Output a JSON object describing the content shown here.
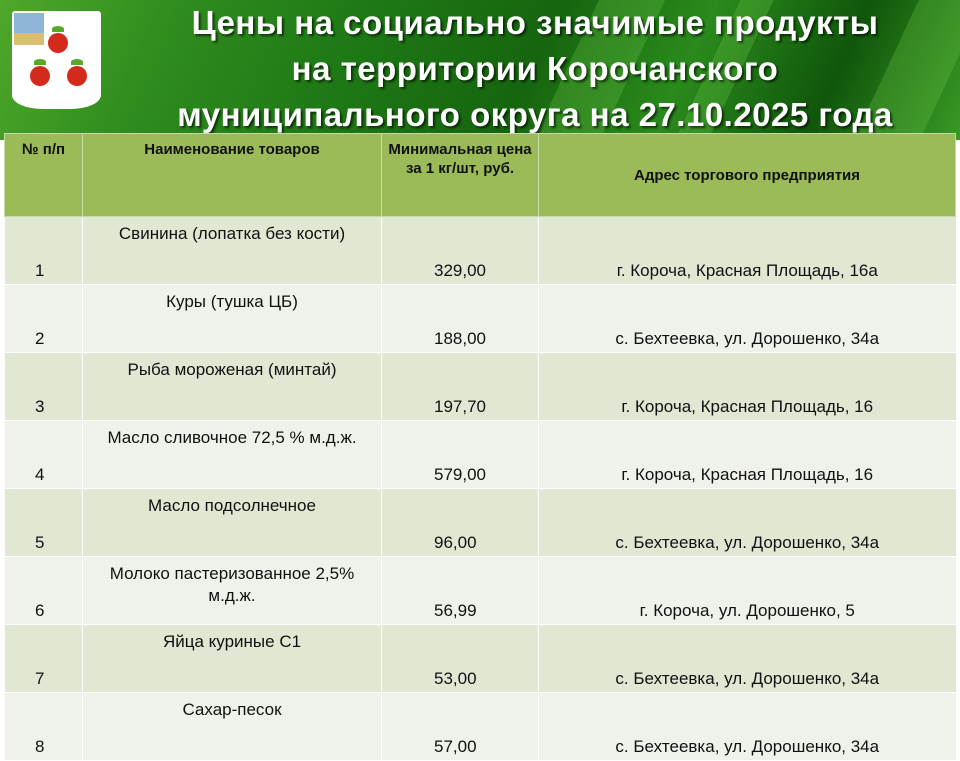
{
  "header": {
    "title_lines": [
      "Цены на социально значимые продукты",
      "на территории Корочанского",
      "муниципального округа на 27.10.2025 года"
    ],
    "emblem": "korocha-coat-of-arms-apples"
  },
  "table": {
    "columns": [
      "№ п/п",
      "Наименование товаров",
      "Минимальная цена за 1 кг/шт, руб.",
      "Адрес торгового предприятия"
    ],
    "rows": [
      {
        "num": "1",
        "name": "Свинина (лопатка без кости)",
        "price": "329,00",
        "address": "г. Короча, Красная Площадь, 16а"
      },
      {
        "num": "2",
        "name": "Куры (тушка ЦБ)",
        "price": "188,00",
        "address": "с. Бехтеевка, ул. Дорошенко, 34а"
      },
      {
        "num": "3",
        "name": "Рыба мороженая (минтай)",
        "price": "197,70",
        "address": "г. Короча, Красная Площадь, 16"
      },
      {
        "num": "4",
        "name": "Масло сливочное 72,5 % м.д.ж.",
        "price": "579,00",
        "address": "г. Короча, Красная Площадь, 16"
      },
      {
        "num": "5",
        "name": "Масло подсолнечное",
        "price": "96,00",
        "address": "с. Бехтеевка, ул. Дорошенко, 34а"
      },
      {
        "num": "6",
        "name": "Молоко пастеризованное 2,5% м.д.ж.",
        "price": "56,99",
        "address": "г. Короча, ул. Дорошенко, 5"
      },
      {
        "num": "7",
        "name": "Яйца куриные С1",
        "price": "53,00",
        "address": "с. Бехтеевка, ул. Дорошенко, 34а"
      },
      {
        "num": "8",
        "name": "Сахар-песок",
        "price": "57,00",
        "address": "с. Бехтеевка, ул. Дорошенко, 34а"
      }
    ]
  },
  "colors": {
    "header_bg": "#9bbb59",
    "row_odd": "#e0e7d3",
    "row_even": "#eff2ea",
    "banner": "#1f7a16"
  }
}
